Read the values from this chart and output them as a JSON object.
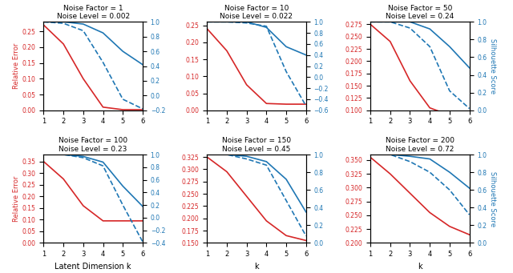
{
  "panels": [
    {
      "title1": "Noise Factor = 1",
      "title2": "Noise Level = 0.002",
      "red": [
        0.27,
        0.21,
        0.1,
        0.01,
        0.002,
        0.002
      ],
      "blue_solid": [
        1.0,
        1.0,
        0.97,
        0.85,
        0.6,
        0.42
      ],
      "blue_dashed": [
        1.0,
        0.98,
        0.88,
        0.45,
        -0.05,
        -0.18
      ],
      "ylim_left": [
        0.0,
        0.28
      ],
      "ylim_right": [
        -0.2,
        1.0
      ],
      "yticks_left": [
        0.0,
        0.05,
        0.1,
        0.15,
        0.2,
        0.25
      ],
      "yticks_right": [
        -0.2,
        0.0,
        0.2,
        0.4,
        0.6,
        0.8,
        1.0
      ]
    },
    {
      "title1": "Noise Factor = 10",
      "title2": "Noise Level = 0.022",
      "red": [
        0.24,
        0.175,
        0.075,
        0.02,
        0.018,
        0.018
      ],
      "blue_solid": [
        1.0,
        1.0,
        1.0,
        0.9,
        0.55,
        0.4
      ],
      "blue_dashed": [
        1.0,
        1.0,
        0.98,
        0.92,
        0.1,
        -0.52
      ],
      "ylim_left": [
        0.0,
        0.26
      ],
      "ylim_right": [
        -0.6,
        1.0
      ],
      "yticks_left": [
        0.0,
        0.05,
        0.1,
        0.15,
        0.2,
        0.25
      ],
      "yticks_right": [
        -0.6,
        -0.4,
        -0.2,
        0.0,
        0.2,
        0.4,
        0.6,
        0.8,
        1.0
      ]
    },
    {
      "title1": "Noise Factor = 50",
      "title2": "Noise Level = 0.24",
      "red": [
        0.275,
        0.24,
        0.16,
        0.105,
        0.09,
        0.085
      ],
      "blue_solid": [
        1.0,
        1.0,
        1.0,
        0.92,
        0.72,
        0.48
      ],
      "blue_dashed": [
        1.0,
        1.0,
        0.93,
        0.72,
        0.22,
        0.02
      ],
      "ylim_left": [
        0.1,
        0.28
      ],
      "ylim_right": [
        0.0,
        1.0
      ],
      "yticks_left": [
        0.1,
        0.125,
        0.15,
        0.175,
        0.2,
        0.225,
        0.25,
        0.275
      ],
      "yticks_right": [
        0.0,
        0.2,
        0.4,
        0.6,
        0.8,
        1.0
      ]
    },
    {
      "title1": "Noise Factor = 100",
      "title2": "Noise Level = 0.23",
      "red": [
        0.35,
        0.275,
        0.16,
        0.095,
        0.095,
        0.095
      ],
      "blue_solid": [
        1.0,
        1.0,
        0.97,
        0.88,
        0.5,
        0.18
      ],
      "blue_dashed": [
        1.0,
        1.0,
        0.95,
        0.82,
        0.2,
        -0.38
      ],
      "ylim_left": [
        0.0,
        0.38
      ],
      "ylim_right": [
        -0.4,
        1.0
      ],
      "yticks_left": [
        0.0,
        0.05,
        0.1,
        0.15,
        0.2,
        0.25,
        0.3,
        0.35
      ],
      "yticks_right": [
        -0.4,
        -0.2,
        0.0,
        0.2,
        0.4,
        0.6,
        0.8,
        1.0
      ]
    },
    {
      "title1": "Noise Factor = 150",
      "title2": "Noise Level = 0.45",
      "red": [
        0.325,
        0.295,
        0.245,
        0.195,
        0.165,
        0.155
      ],
      "blue_solid": [
        1.0,
        1.0,
        0.98,
        0.92,
        0.72,
        0.35
      ],
      "blue_dashed": [
        1.0,
        1.0,
        0.95,
        0.88,
        0.48,
        0.08
      ],
      "ylim_left": [
        0.15,
        0.33
      ],
      "ylim_right": [
        0.0,
        1.0
      ],
      "yticks_left": [
        0.15,
        0.175,
        0.2,
        0.225,
        0.25,
        0.275,
        0.3,
        0.325
      ],
      "yticks_right": [
        0.0,
        0.2,
        0.4,
        0.6,
        0.8,
        1.0
      ]
    },
    {
      "title1": "Noise Factor = 200",
      "title2": "Noise Level = 0.72",
      "red": [
        0.355,
        0.325,
        0.29,
        0.255,
        0.23,
        0.215
      ],
      "blue_solid": [
        1.0,
        1.0,
        0.98,
        0.95,
        0.8,
        0.62
      ],
      "blue_dashed": [
        1.0,
        1.0,
        0.92,
        0.8,
        0.6,
        0.32
      ],
      "ylim_left": [
        0.2,
        0.36
      ],
      "ylim_right": [
        0.0,
        1.0
      ],
      "yticks_left": [
        0.2,
        0.225,
        0.25,
        0.275,
        0.3,
        0.325,
        0.35
      ],
      "yticks_right": [
        0.0,
        0.2,
        0.4,
        0.6,
        0.8,
        1.0
      ]
    }
  ],
  "x": [
    1,
    2,
    3,
    4,
    5,
    6
  ],
  "red_color": "#d62728",
  "blue_color": "#1f77b4",
  "row_xlabels": [
    "Latent Dimension k",
    "k",
    "k"
  ],
  "left_ylabel": "Relative Error",
  "right_ylabel": "Silhouette Score"
}
